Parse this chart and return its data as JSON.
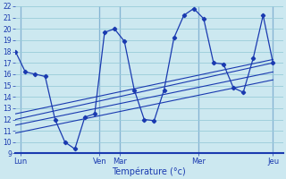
{
  "xlabel": "Température (°c)",
  "bg_color": "#cce8f0",
  "grid_color": "#99ccd9",
  "line_color": "#1a3ab0",
  "ylim": [
    9,
    22
  ],
  "xlim": [
    0,
    27
  ],
  "yticks": [
    9,
    10,
    11,
    12,
    13,
    14,
    15,
    16,
    17,
    18,
    19,
    20,
    21,
    22
  ],
  "day_labels": [
    "Lun",
    "Ven",
    "Mar",
    "Mer",
    "Jeu"
  ],
  "day_positions": [
    0.5,
    8.5,
    10.5,
    18.5,
    26.0
  ],
  "vline_positions": [
    0.5,
    8.5,
    10.5,
    18.5,
    26.0
  ],
  "main_x": [
    0,
    1,
    2,
    3,
    4,
    5,
    6,
    7,
    8,
    9,
    10,
    11,
    12,
    13,
    14,
    15,
    16,
    17,
    18,
    19,
    20,
    21,
    22,
    23,
    24,
    25,
    26
  ],
  "main_y": [
    18,
    16.2,
    16.0,
    15.8,
    12.0,
    10.0,
    9.4,
    12.2,
    12.5,
    19.7,
    20.0,
    18.9,
    14.6,
    12.0,
    11.9,
    14.6,
    19.2,
    21.2,
    21.8,
    20.9,
    17.0,
    16.9,
    14.8,
    14.4,
    17.4,
    21.2,
    17.0
  ],
  "trend_lines": [
    {
      "x": [
        0,
        26
      ],
      "y": [
        12.0,
        17.0
      ]
    },
    {
      "x": [
        0,
        26
      ],
      "y": [
        12.5,
        17.3
      ]
    },
    {
      "x": [
        0,
        26
      ],
      "y": [
        11.5,
        16.2
      ]
    },
    {
      "x": [
        0,
        26
      ],
      "y": [
        10.8,
        15.5
      ]
    }
  ]
}
